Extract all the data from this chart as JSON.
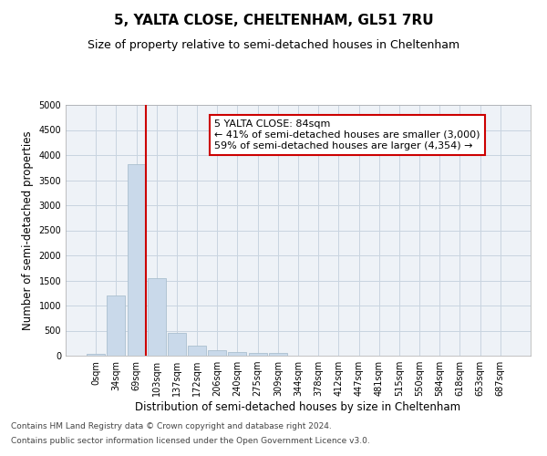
{
  "title": "5, YALTA CLOSE, CHELTENHAM, GL51 7RU",
  "subtitle": "Size of property relative to semi-detached houses in Cheltenham",
  "xlabel": "Distribution of semi-detached houses by size in Cheltenham",
  "ylabel": "Number of semi-detached properties",
  "bar_color": "#c9d9ea",
  "bar_edge_color": "#aabfcf",
  "vline_color": "#cc0000",
  "annotation_line1": "5 YALTA CLOSE: 84sqm",
  "annotation_line2": "← 41% of semi-detached houses are smaller (3,000)",
  "annotation_line3": "59% of semi-detached houses are larger (4,354) →",
  "annotation_box_color": "#ffffff",
  "annotation_box_edge": "#cc0000",
  "categories": [
    "0sqm",
    "34sqm",
    "69sqm",
    "103sqm",
    "137sqm",
    "172sqm",
    "206sqm",
    "240sqm",
    "275sqm",
    "309sqm",
    "344sqm",
    "378sqm",
    "412sqm",
    "447sqm",
    "481sqm",
    "515sqm",
    "550sqm",
    "584sqm",
    "618sqm",
    "653sqm",
    "687sqm"
  ],
  "values": [
    30,
    1200,
    3820,
    1550,
    450,
    200,
    110,
    75,
    60,
    50,
    0,
    0,
    0,
    0,
    0,
    0,
    0,
    0,
    0,
    0,
    0
  ],
  "ylim": [
    0,
    5000
  ],
  "yticks": [
    0,
    500,
    1000,
    1500,
    2000,
    2500,
    3000,
    3500,
    4000,
    4500,
    5000
  ],
  "grid_color": "#c8d4e0",
  "background_color": "#eef2f7",
  "footer1": "Contains HM Land Registry data © Crown copyright and database right 2024.",
  "footer2": "Contains public sector information licensed under the Open Government Licence v3.0.",
  "title_fontsize": 11,
  "subtitle_fontsize": 9,
  "label_fontsize": 8.5,
  "tick_fontsize": 7,
  "footer_fontsize": 6.5,
  "annot_fontsize": 8
}
